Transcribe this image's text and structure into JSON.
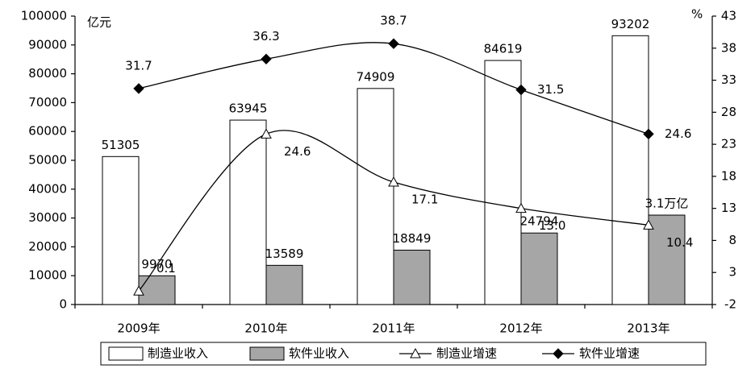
{
  "chart_data": {
    "type": "bar-line",
    "y_label": "亿元",
    "y2_label": "%",
    "categories": [
      "2009年",
      "2010年",
      "2011年",
      "2012年",
      "2013年"
    ],
    "series": [
      {
        "name": "制造业收入",
        "type": "bar",
        "color": "#ffffff",
        "values": [
          51305,
          63945,
          74909,
          84619,
          93202
        ]
      },
      {
        "name": "软件业收入",
        "type": "bar",
        "color": "#a6a6a6",
        "values": [
          9970,
          13589,
          18849,
          24794,
          31000
        ],
        "value_labels": [
          "9970",
          "13589",
          "18849",
          "24794",
          "3.1万亿"
        ]
      },
      {
        "name": "制造业增速",
        "type": "line",
        "marker": "triangle",
        "axis": "y2",
        "color": "#000000",
        "values": [
          0.1,
          24.6,
          17.1,
          13.0,
          10.4
        ],
        "value_labels": [
          "0.1",
          "24.6",
          "17.1",
          "13.0",
          "10.4"
        ]
      },
      {
        "name": "软件业增速",
        "type": "line",
        "marker": "diamond",
        "axis": "y2",
        "color": "#000000",
        "values": [
          31.7,
          36.3,
          38.7,
          31.5,
          24.6
        ]
      }
    ],
    "ylim": [
      0,
      100000
    ],
    "yticks": [
      0,
      10000,
      20000,
      30000,
      40000,
      50000,
      60000,
      70000,
      80000,
      90000,
      100000
    ],
    "y2lim": [
      -2,
      43
    ],
    "y2ticks": [
      -2,
      3,
      8,
      13,
      18,
      23,
      28,
      33,
      38,
      43
    ]
  }
}
